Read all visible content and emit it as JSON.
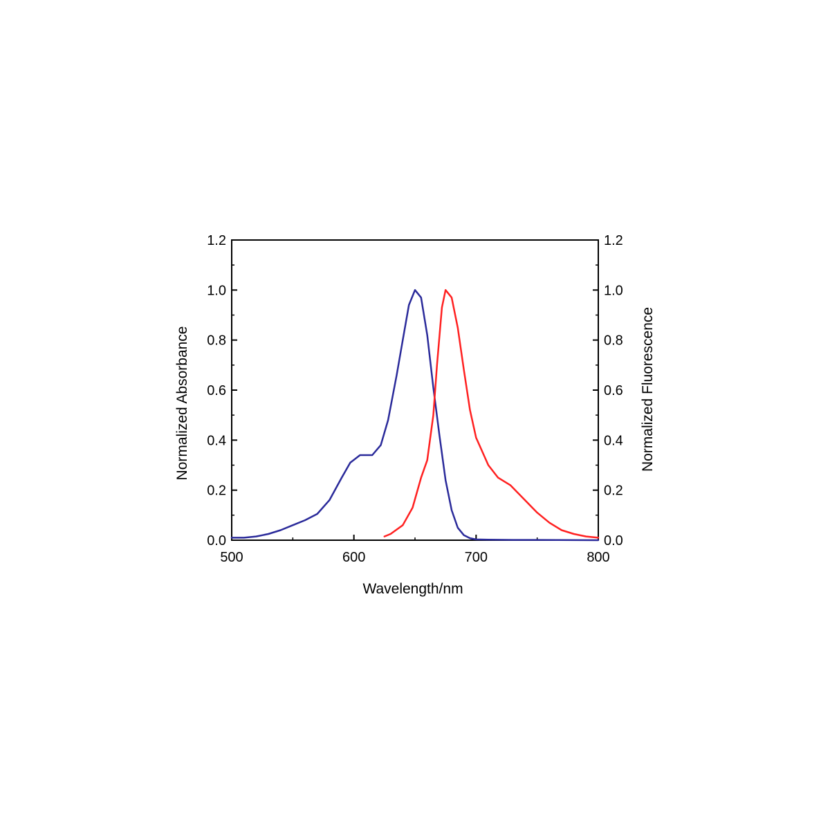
{
  "chart_data": {
    "type": "line",
    "title": "",
    "xlabel": "Wavelength/nm",
    "ylabel_left": "Normalized Absorbance",
    "ylabel_right": "Normalized Fluorescence",
    "xlim": [
      500,
      800
    ],
    "ylim": [
      0,
      1.2
    ],
    "x_ticks": [
      "500",
      "600",
      "700",
      "800"
    ],
    "y_ticks": [
      "0.0",
      "0.2",
      "0.4",
      "0.6",
      "0.8",
      "1.0",
      "1.2"
    ],
    "grid": false,
    "legend": "none",
    "series": [
      {
        "axis": "left",
        "color": "#2a2a9a",
        "points": [
          [
            500,
            0.01
          ],
          [
            510,
            0.01
          ],
          [
            520,
            0.015
          ],
          [
            530,
            0.025
          ],
          [
            540,
            0.04
          ],
          [
            550,
            0.06
          ],
          [
            560,
            0.08
          ],
          [
            570,
            0.105
          ],
          [
            580,
            0.16
          ],
          [
            590,
            0.25
          ],
          [
            597,
            0.31
          ],
          [
            605,
            0.34
          ],
          [
            615,
            0.34
          ],
          [
            622,
            0.38
          ],
          [
            628,
            0.48
          ],
          [
            635,
            0.66
          ],
          [
            640,
            0.8
          ],
          [
            645,
            0.94
          ],
          [
            650,
            1.0
          ],
          [
            655,
            0.97
          ],
          [
            660,
            0.82
          ],
          [
            665,
            0.61
          ],
          [
            670,
            0.42
          ],
          [
            675,
            0.24
          ],
          [
            680,
            0.12
          ],
          [
            685,
            0.05
          ],
          [
            690,
            0.02
          ],
          [
            695,
            0.008
          ],
          [
            700,
            0.003
          ],
          [
            710,
            0.002
          ],
          [
            730,
            0.001
          ],
          [
            750,
            0.001
          ],
          [
            800,
            0.0
          ]
        ]
      },
      {
        "axis": "right",
        "color": "#ff2020",
        "points": [
          [
            625,
            0.015
          ],
          [
            630,
            0.025
          ],
          [
            640,
            0.06
          ],
          [
            648,
            0.13
          ],
          [
            655,
            0.25
          ],
          [
            660,
            0.32
          ],
          [
            665,
            0.5
          ],
          [
            668,
            0.7
          ],
          [
            672,
            0.93
          ],
          [
            675,
            1.0
          ],
          [
            680,
            0.97
          ],
          [
            685,
            0.85
          ],
          [
            690,
            0.68
          ],
          [
            695,
            0.52
          ],
          [
            700,
            0.41
          ],
          [
            710,
            0.3
          ],
          [
            718,
            0.25
          ],
          [
            728,
            0.22
          ],
          [
            738,
            0.17
          ],
          [
            750,
            0.11
          ],
          [
            760,
            0.07
          ],
          [
            770,
            0.04
          ],
          [
            780,
            0.025
          ],
          [
            790,
            0.015
          ],
          [
            800,
            0.01
          ]
        ]
      }
    ]
  }
}
